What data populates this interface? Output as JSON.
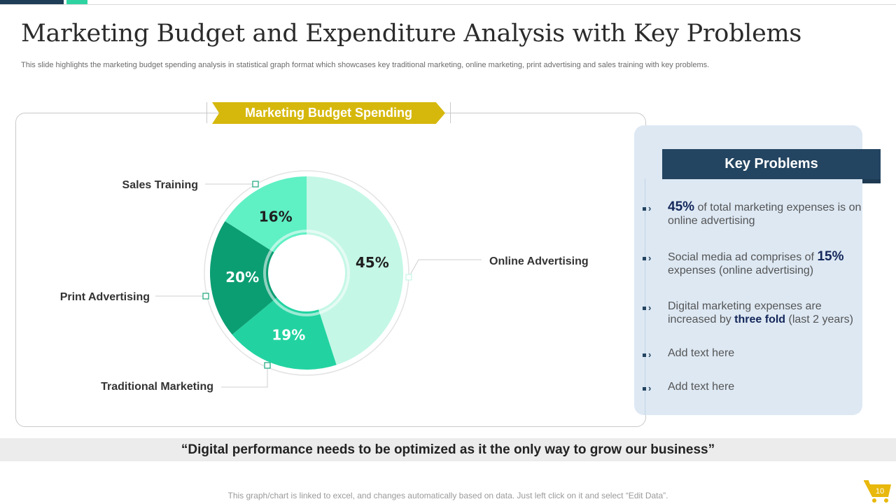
{
  "slide": {
    "title": "Marketing Budget and Expenditure Analysis with Key Problems",
    "subtitle": "This slide highlights the marketing budget spending analysis in statistical graph format which showcases key traditional marketing, online marketing, print advertising and sales training with key problems.",
    "page_number": "10"
  },
  "ribbon": {
    "label": "Marketing Budget Spending"
  },
  "chart_data": {
    "type": "pie",
    "title": "Marketing Budget Spending",
    "categories": [
      "Online Advertising",
      "Traditional Marketing",
      "Print Advertising",
      "Sales Training"
    ],
    "values": [
      45,
      19,
      20,
      16
    ],
    "value_labels": [
      "45%",
      "19%",
      "20%",
      "16%"
    ],
    "colors": [
      "#c4f7e6",
      "#22d3a1",
      "#0c9e73",
      "#5ff0c4"
    ],
    "label_colors": [
      "#1f1f1f",
      "#ffffff",
      "#ffffff",
      "#1f1f1f"
    ],
    "donut": true
  },
  "key_problems": {
    "header": "Key Problems",
    "items": [
      {
        "pre": "",
        "highlight": "45%",
        "post": " of total marketing expenses is on online advertising"
      },
      {
        "pre": "Social media ad comprises of ",
        "highlight": "15%",
        "post": " expenses (online advertising)"
      },
      {
        "pre": "Digital marketing expenses are  increased by ",
        "highlight": "three fold",
        "post": " (last 2 years)"
      },
      {
        "pre": "Add text here",
        "highlight": "",
        "post": ""
      },
      {
        "pre": "Add text here",
        "highlight": "",
        "post": ""
      }
    ]
  },
  "quote": "“Digital performance needs to be optimized as it the only way to grow our business”",
  "footer_note": "This graph/chart is linked to excel, and changes automatically based on data. Just left click on it and select “Edit Data”.",
  "colors": {
    "accent_dark": "#244561",
    "accent_green": "#2fd3a1",
    "ribbon": "#d6b80d"
  }
}
